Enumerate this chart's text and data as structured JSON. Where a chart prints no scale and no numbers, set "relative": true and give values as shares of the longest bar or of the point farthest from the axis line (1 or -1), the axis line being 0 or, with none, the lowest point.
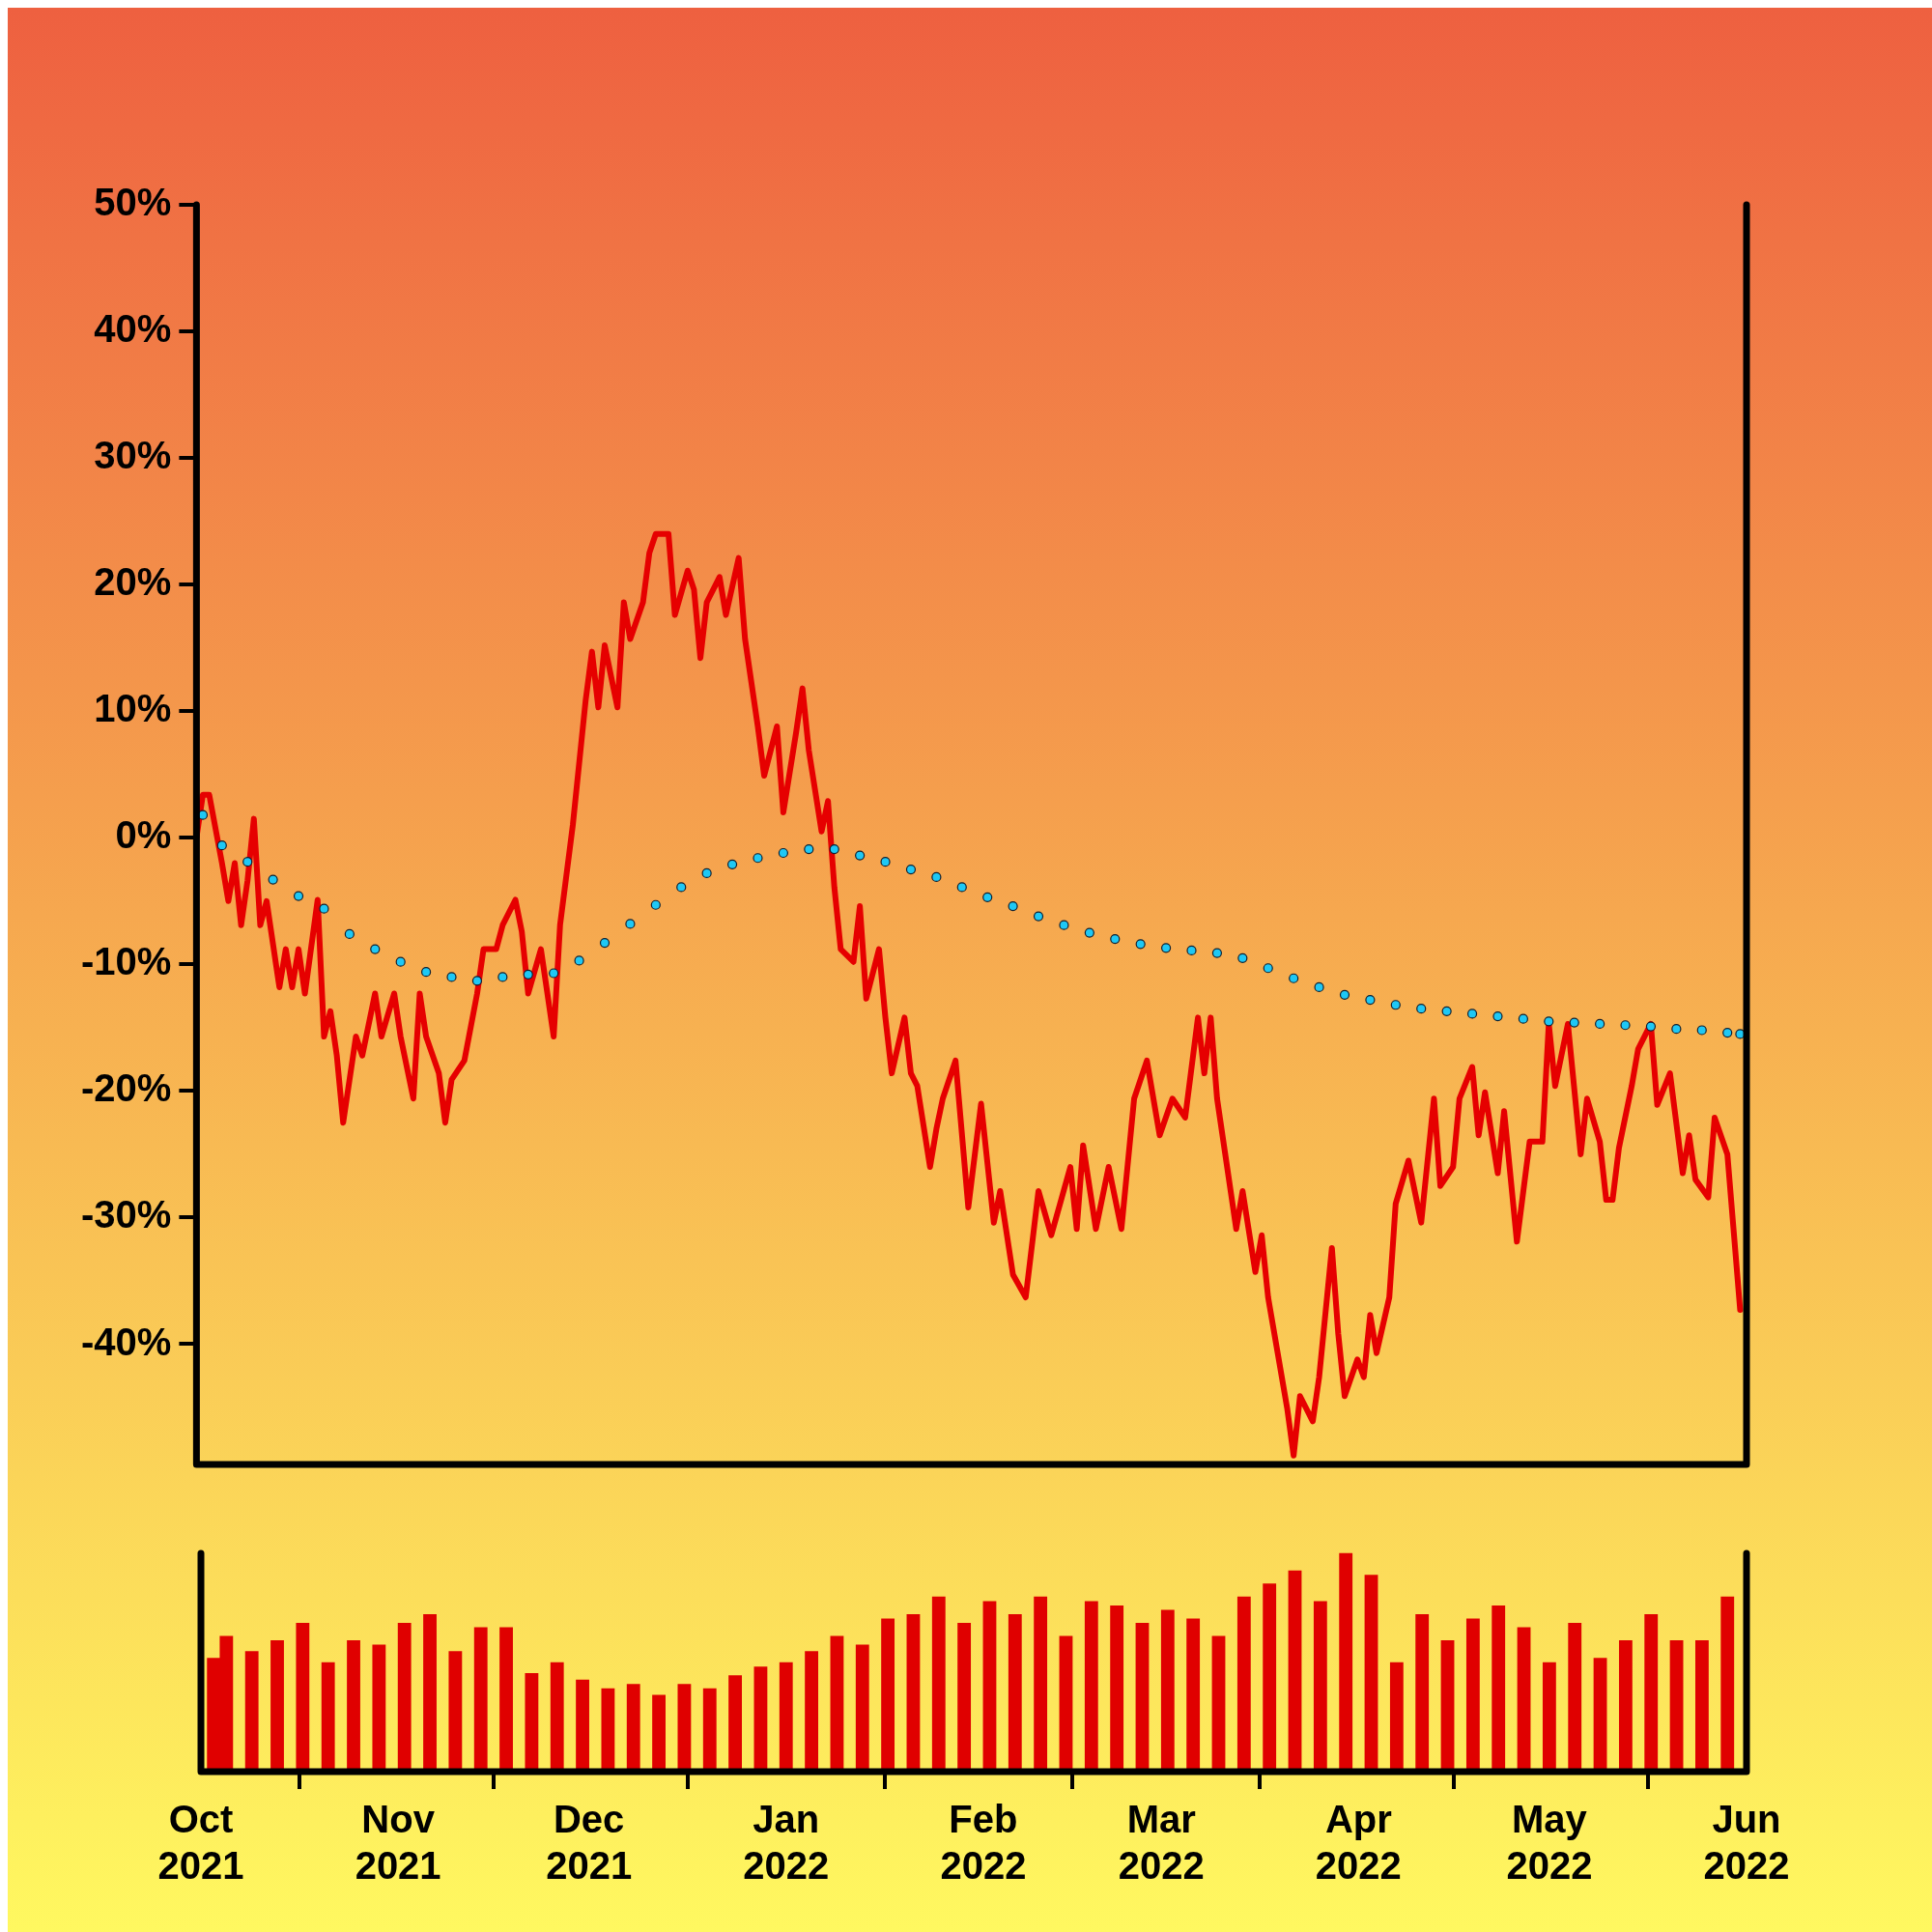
{
  "chart_data": [
    {
      "type": "line",
      "xlim": [
        "2021-10-01",
        "2022-06-01"
      ],
      "ylim": [
        -49.5,
        50
      ],
      "yticks": [
        {
          "value": 50,
          "label": "50%"
        },
        {
          "value": 40,
          "label": "40%"
        },
        {
          "value": 30,
          "label": "30%"
        },
        {
          "value": 20,
          "label": "20%"
        },
        {
          "value": 10,
          "label": "10%"
        },
        {
          "value": 0,
          "label": "0%"
        },
        {
          "value": -10,
          "label": "-10%"
        },
        {
          "value": -20,
          "label": "-20%"
        },
        {
          "value": -30,
          "label": "-30%"
        },
        {
          "value": -40,
          "label": "-40%"
        }
      ],
      "tick_labels": "y",
      "grid": false,
      "series": [
        {
          "type": "line",
          "color": "#e60000",
          "marker": "none",
          "x": [
            "2021-10-01",
            "2021-10-02",
            "2021-10-03",
            "2021-10-05",
            "2021-10-06",
            "2021-10-07",
            "2021-10-08",
            "2021-10-09",
            "2021-10-10",
            "2021-10-11",
            "2021-10-12",
            "2021-10-14",
            "2021-10-15",
            "2021-10-16",
            "2021-10-17",
            "2021-10-18",
            "2021-10-20",
            "2021-10-21",
            "2021-10-22",
            "2021-10-23",
            "2021-10-24",
            "2021-10-26",
            "2021-10-27",
            "2021-10-29",
            "2021-10-30",
            "2021-11-01",
            "2021-11-02",
            "2021-11-04",
            "2021-11-05",
            "2021-11-06",
            "2021-11-08",
            "2021-11-09",
            "2021-11-10",
            "2021-11-12",
            "2021-11-14",
            "2021-11-15",
            "2021-11-17",
            "2021-11-18",
            "2021-11-20",
            "2021-11-21",
            "2021-11-22",
            "2021-11-24",
            "2021-11-26",
            "2021-11-27",
            "2021-11-29",
            "2021-12-01",
            "2021-12-02",
            "2021-12-03",
            "2021-12-04",
            "2021-12-06",
            "2021-12-07",
            "2021-12-08",
            "2021-12-10",
            "2021-12-11",
            "2021-12-12",
            "2021-12-14",
            "2021-12-15",
            "2021-12-17",
            "2021-12-18",
            "2021-12-19",
            "2021-12-20",
            "2021-12-22",
            "2021-12-23",
            "2021-12-25",
            "2021-12-26",
            "2021-12-28",
            "2021-12-29",
            "2021-12-31",
            "2022-01-01",
            "2022-01-03",
            "2022-01-04",
            "2022-01-05",
            "2022-01-07",
            "2022-01-08",
            "2022-01-09",
            "2022-01-10",
            "2022-01-12",
            "2022-01-13",
            "2022-01-14",
            "2022-01-16",
            "2022-01-17",
            "2022-01-18",
            "2022-01-20",
            "2022-01-21",
            "2022-01-22",
            "2022-01-24",
            "2022-01-25",
            "2022-01-26",
            "2022-01-28",
            "2022-01-30",
            "2022-02-01",
            "2022-02-03",
            "2022-02-04",
            "2022-02-06",
            "2022-02-08",
            "2022-02-10",
            "2022-02-12",
            "2022-02-15",
            "2022-02-16",
            "2022-02-17",
            "2022-02-19",
            "2022-02-21",
            "2022-02-23",
            "2022-02-25",
            "2022-02-27",
            "2022-03-01",
            "2022-03-03",
            "2022-03-05",
            "2022-03-07",
            "2022-03-08",
            "2022-03-09",
            "2022-03-10",
            "2022-03-13",
            "2022-03-14",
            "2022-03-16",
            "2022-03-17",
            "2022-03-18",
            "2022-03-21",
            "2022-03-22",
            "2022-03-23",
            "2022-03-25",
            "2022-03-26",
            "2022-03-28",
            "2022-03-29",
            "2022-03-30",
            "2022-04-01",
            "2022-04-02",
            "2022-04-03",
            "2022-04-04",
            "2022-04-06",
            "2022-04-07",
            "2022-04-09",
            "2022-04-11",
            "2022-04-13",
            "2022-04-14",
            "2022-04-16",
            "2022-04-17",
            "2022-04-19",
            "2022-04-20",
            "2022-04-21",
            "2022-04-23",
            "2022-04-24",
            "2022-04-26",
            "2022-04-28",
            "2022-04-30",
            "2022-05-01",
            "2022-05-02",
            "2022-05-04",
            "2022-05-06",
            "2022-05-07",
            "2022-05-09",
            "2022-05-10",
            "2022-05-11",
            "2022-05-12",
            "2022-05-14",
            "2022-05-15",
            "2022-05-17",
            "2022-05-18",
            "2022-05-20",
            "2022-05-22",
            "2022-05-23",
            "2022-05-24",
            "2022-05-26",
            "2022-05-27",
            "2022-05-29",
            "2022-05-31"
          ],
          "values": [
            0,
            3.4,
            3.4,
            -2,
            -5,
            -2,
            -6.9,
            -3.4,
            1.5,
            -6.9,
            -5,
            -11.8,
            -8.8,
            -11.8,
            -8.8,
            -12.3,
            -4.9,
            -15.7,
            -13.7,
            -17.2,
            -22.5,
            -15.7,
            -17.2,
            -12.3,
            -15.7,
            -12.3,
            -15.7,
            -20.6,
            -12.3,
            -15.7,
            -18.6,
            -22.5,
            -19.1,
            -17.6,
            -12.3,
            -8.8,
            -8.8,
            -6.9,
            -4.9,
            -7.4,
            -12.3,
            -8.8,
            -15.7,
            -6.9,
            1,
            10.8,
            14.7,
            10.3,
            15.2,
            10.3,
            18.6,
            15.7,
            18.6,
            22.5,
            24,
            24,
            17.6,
            21.1,
            19.6,
            14.2,
            18.6,
            20.6,
            17.6,
            22.1,
            15.7,
            8.8,
            4.9,
            8.8,
            2,
            8.3,
            11.8,
            6.9,
            0.5,
            2.9,
            -3.9,
            -8.8,
            -9.8,
            -5.4,
            -12.7,
            -8.8,
            -14.2,
            -18.6,
            -14.2,
            -18.6,
            -19.6,
            -26,
            -23,
            -20.6,
            -17.6,
            -29.2,
            -21,
            -30.4,
            -27.9,
            -34.5,
            -36.3,
            -27.9,
            -31.4,
            -26,
            -30.9,
            -24.3,
            -30.9,
            -26,
            -30.9,
            -20.6,
            -17.6,
            -23.5,
            -20.6,
            -22.1,
            -14.2,
            -18.6,
            -14.2,
            -20.6,
            -30.9,
            -27.9,
            -34.3,
            -31.4,
            -36.3,
            -45.1,
            -48.8,
            -44.1,
            -46.1,
            -42.6,
            -32.4,
            -39.2,
            -44.1,
            -41.2,
            -42.6,
            -37.7,
            -40.7,
            -36.3,
            -28.9,
            -25.5,
            -30.4,
            -20.6,
            -27.5,
            -26,
            -20.6,
            -18.1,
            -23.5,
            -20.1,
            -26.5,
            -21.6,
            -31.9,
            -24,
            -24,
            -14.7,
            -19.6,
            -14.7,
            -25,
            -20.6,
            -24,
            -28.6,
            -28.6,
            -24.5,
            -19.6,
            -16.7,
            -14.7,
            -21.1,
            -18.6,
            -26.5,
            -23.5,
            -27,
            -28.4,
            -22.1,
            -25,
            -37.3
          ]
        },
        {
          "type": "scatter",
          "color": "#1ec8f5",
          "marker": "circle",
          "x": [
            "2021-10-02",
            "2021-10-05",
            "2021-10-09",
            "2021-10-13",
            "2021-10-17",
            "2021-10-21",
            "2021-10-25",
            "2021-10-29",
            "2021-11-02",
            "2021-11-06",
            "2021-11-10",
            "2021-11-14",
            "2021-11-18",
            "2021-11-22",
            "2021-11-26",
            "2021-11-30",
            "2021-12-04",
            "2021-12-08",
            "2021-12-12",
            "2021-12-16",
            "2021-12-20",
            "2021-12-24",
            "2021-12-28",
            "2022-01-01",
            "2022-01-05",
            "2022-01-09",
            "2022-01-13",
            "2022-01-17",
            "2022-01-21",
            "2022-01-25",
            "2022-01-29",
            "2022-02-02",
            "2022-02-06",
            "2022-02-10",
            "2022-02-14",
            "2022-02-18",
            "2022-02-22",
            "2022-02-26",
            "2022-03-02",
            "2022-03-06",
            "2022-03-10",
            "2022-03-14",
            "2022-03-18",
            "2022-03-22",
            "2022-03-26",
            "2022-03-30",
            "2022-04-03",
            "2022-04-07",
            "2022-04-11",
            "2022-04-15",
            "2022-04-19",
            "2022-04-23",
            "2022-04-27",
            "2022-05-01",
            "2022-05-05",
            "2022-05-09",
            "2022-05-13",
            "2022-05-17",
            "2022-05-21",
            "2022-05-25",
            "2022-05-29",
            "2022-05-31"
          ],
          "values": [
            1.8,
            -0.6,
            -1.9,
            -3.3,
            -4.6,
            -5.6,
            -7.6,
            -8.8,
            -9.8,
            -10.6,
            -11,
            -11.3,
            -11,
            -10.8,
            -10.7,
            -9.7,
            -8.3,
            -6.8,
            -5.3,
            -3.9,
            -2.8,
            -2.1,
            -1.6,
            -1.2,
            -0.9,
            -0.9,
            -1.4,
            -1.9,
            -2.5,
            -3.1,
            -3.9,
            -4.7,
            -5.4,
            -6.2,
            -6.9,
            -7.5,
            -8,
            -8.4,
            -8.7,
            -8.9,
            -9.1,
            -9.5,
            -10.3,
            -11.1,
            -11.8,
            -12.4,
            -12.8,
            -13.2,
            -13.5,
            -13.7,
            -13.9,
            -14.1,
            -14.3,
            -14.5,
            -14.6,
            -14.7,
            -14.8,
            -14.9,
            -15.1,
            -15.2,
            -15.4,
            -15.5
          ]
        }
      ]
    },
    {
      "type": "bar",
      "relative": true,
      "color": "#e00000",
      "xlim": [
        "2021-10-01",
        "2022-06-01"
      ],
      "xticks": [
        {
          "value": "2021-10-01",
          "label": "Oct 2021"
        },
        {
          "value": "2021-11-01",
          "label": "Nov 2021"
        },
        {
          "value": "2021-12-01",
          "label": "Dec 2021"
        },
        {
          "value": "2022-01-01",
          "label": "Jan 2022"
        },
        {
          "value": "2022-02-01",
          "label": "Feb 2022"
        },
        {
          "value": "2022-03-01",
          "label": "Mar 2022"
        },
        {
          "value": "2022-04-01",
          "label": "Apr 2022"
        },
        {
          "value": "2022-05-01",
          "label": "May 2022"
        },
        {
          "value": "2022-06-01",
          "label": "Jun 2022"
        }
      ],
      "tick_labels": "x",
      "grid": false,
      "x": [
        "2021-10-03",
        "2021-10-05",
        "2021-10-09",
        "2021-10-13",
        "2021-10-17",
        "2021-10-21",
        "2021-10-25",
        "2021-10-29",
        "2021-11-02",
        "2021-11-06",
        "2021-11-10",
        "2021-11-14",
        "2021-11-18",
        "2021-11-22",
        "2021-11-26",
        "2021-11-30",
        "2021-12-04",
        "2021-12-08",
        "2021-12-12",
        "2021-12-16",
        "2021-12-20",
        "2021-12-24",
        "2021-12-28",
        "2022-01-01",
        "2022-01-05",
        "2022-01-09",
        "2022-01-13",
        "2022-01-17",
        "2022-01-21",
        "2022-01-25",
        "2022-01-29",
        "2022-02-02",
        "2022-02-06",
        "2022-02-10",
        "2022-02-14",
        "2022-02-18",
        "2022-02-22",
        "2022-02-26",
        "2022-03-02",
        "2022-03-06",
        "2022-03-10",
        "2022-03-14",
        "2022-03-18",
        "2022-03-22",
        "2022-03-26",
        "2022-03-30",
        "2022-04-03",
        "2022-04-07",
        "2022-04-11",
        "2022-04-15",
        "2022-04-19",
        "2022-04-23",
        "2022-04-27",
        "2022-05-01",
        "2022-05-05",
        "2022-05-09",
        "2022-05-13",
        "2022-05-17",
        "2022-05-21",
        "2022-05-25",
        "2022-05-29"
      ],
      "values": [
        0.52,
        0.62,
        0.55,
        0.6,
        0.68,
        0.5,
        0.6,
        0.58,
        0.68,
        0.72,
        0.55,
        0.66,
        0.66,
        0.45,
        0.5,
        0.42,
        0.38,
        0.4,
        0.35,
        0.4,
        0.38,
        0.44,
        0.48,
        0.5,
        0.55,
        0.62,
        0.58,
        0.7,
        0.72,
        0.8,
        0.68,
        0.78,
        0.72,
        0.8,
        0.62,
        0.78,
        0.76,
        0.68,
        0.74,
        0.7,
        0.62,
        0.8,
        0.86,
        0.92,
        0.78,
        1,
        0.9,
        0.5,
        0.72,
        0.6,
        0.7,
        0.76,
        0.66,
        0.5,
        0.68,
        0.52,
        0.6,
        0.72,
        0.6,
        0.6,
        0.8
      ]
    }
  ]
}
